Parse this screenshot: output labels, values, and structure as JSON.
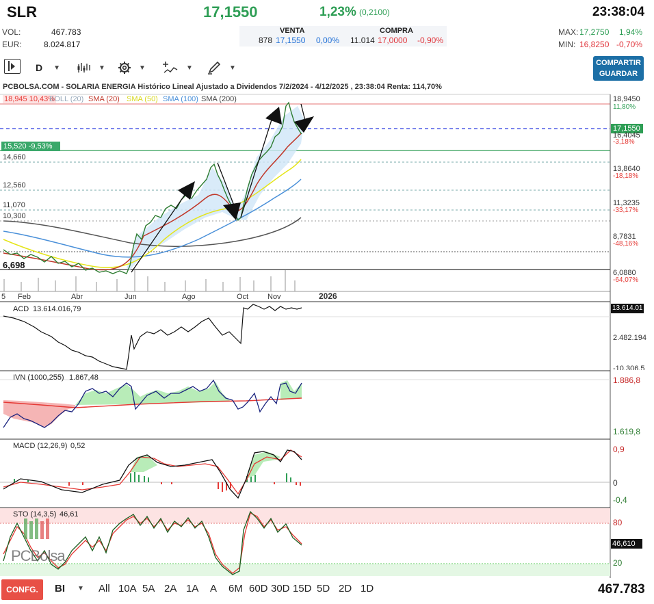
{
  "header": {
    "symbol": "SLR",
    "price": "17,1550",
    "change_pct": "1,23%",
    "change_abs": "(0,2100)",
    "time": "23:38:04"
  },
  "stats": {
    "vol_label": "VOL:",
    "vol_value": "467.783",
    "eur_label": "EUR:",
    "eur_value": "8.024.817",
    "venta_label": "VENTA",
    "venta_qty": "878",
    "venta_price": "17,1550",
    "venta_pct": "0,00%",
    "compra_label": "COMPRA",
    "compra_qty": "11.014",
    "compra_price": "17,0000",
    "compra_pct": "-0,90%",
    "max_label": "MAX:",
    "max_value": "17,2750",
    "max_pct": "1,94%",
    "min_label": "MIN:",
    "min_value": "16,8250",
    "min_pct": "-0,70%"
  },
  "toolbar": {
    "period": "D",
    "share_line1": "COMPARTIR",
    "share_line2": "GUARDAR"
  },
  "main_chart": {
    "title": "PCBOLSA.COM - SOLARIA ENERGIA Histórico Lineal Ajustado a Dividendos 7/2/2024 - 4/12/2025 , 23:38:04 Renta: 114,70%",
    "legend": {
      "top_line": "18,945 10,43%",
      "boll": "BOLL (20)",
      "sma20": "SMA (20)",
      "sma50": "SMA (50)",
      "sma100": "SMA (100)",
      "sma200": "SMA (200)"
    },
    "level_tag": "15,520 -9,53%",
    "left_levels": [
      "14,660",
      "12,560",
      "11,070",
      "10,300",
      "6,698"
    ],
    "right_levels": [
      {
        "price": "18,9450",
        "pct": "11,80%"
      },
      {
        "price": "17,1550",
        "pct": ""
      },
      {
        "price": "16,4045",
        "pct": "-3,18%"
      },
      {
        "price": "13,8640",
        "pct": "-18,18%"
      },
      {
        "price": "11,3235",
        "pct": "-33,17%"
      },
      {
        "price": "8,7831",
        "pct": "-48,16%"
      },
      {
        "price": "6,0880",
        "pct": "-64,07%"
      }
    ],
    "x_labels": [
      "5",
      "Feb",
      "Abr",
      "Jun",
      "Ago",
      "Oct",
      "Nov",
      "2026"
    ],
    "colors": {
      "sma20": "#c0392b",
      "sma50": "#e5e51a",
      "sma100": "#4a90d9",
      "sma200": "#555555",
      "price": "#2e7d32",
      "current": "#2d3ee0"
    }
  },
  "indicators": {
    "acd": {
      "label": "ACD",
      "value": "13.614.016,79",
      "right_top": "13.614.01",
      "right_mid": "2.482.194",
      "right_bot": "-10.306,5"
    },
    "ivn": {
      "label": "IVN (1000,255)",
      "value": "1.867,48",
      "right_top": "1.886,8",
      "right_bot": "1.619,8"
    },
    "macd": {
      "label": "MACD (12,26,9)",
      "value": "0,52",
      "right_top": "0,9",
      "right_mid": "0",
      "right_bot": "-0,4"
    },
    "sto": {
      "label": "STO (14,3,5)",
      "value": "46,61",
      "right_top": "80",
      "right_mid": "46,610",
      "right_bot": "20"
    }
  },
  "watermark": "PCBolsa",
  "bottom": {
    "config": "CONFG.",
    "mode": "BI",
    "ranges": [
      "All",
      "10A",
      "5A",
      "2A",
      "1A",
      "A",
      "6M",
      "60D",
      "30D",
      "15D",
      "5D",
      "2D",
      "1D"
    ],
    "volume": "467.783"
  }
}
